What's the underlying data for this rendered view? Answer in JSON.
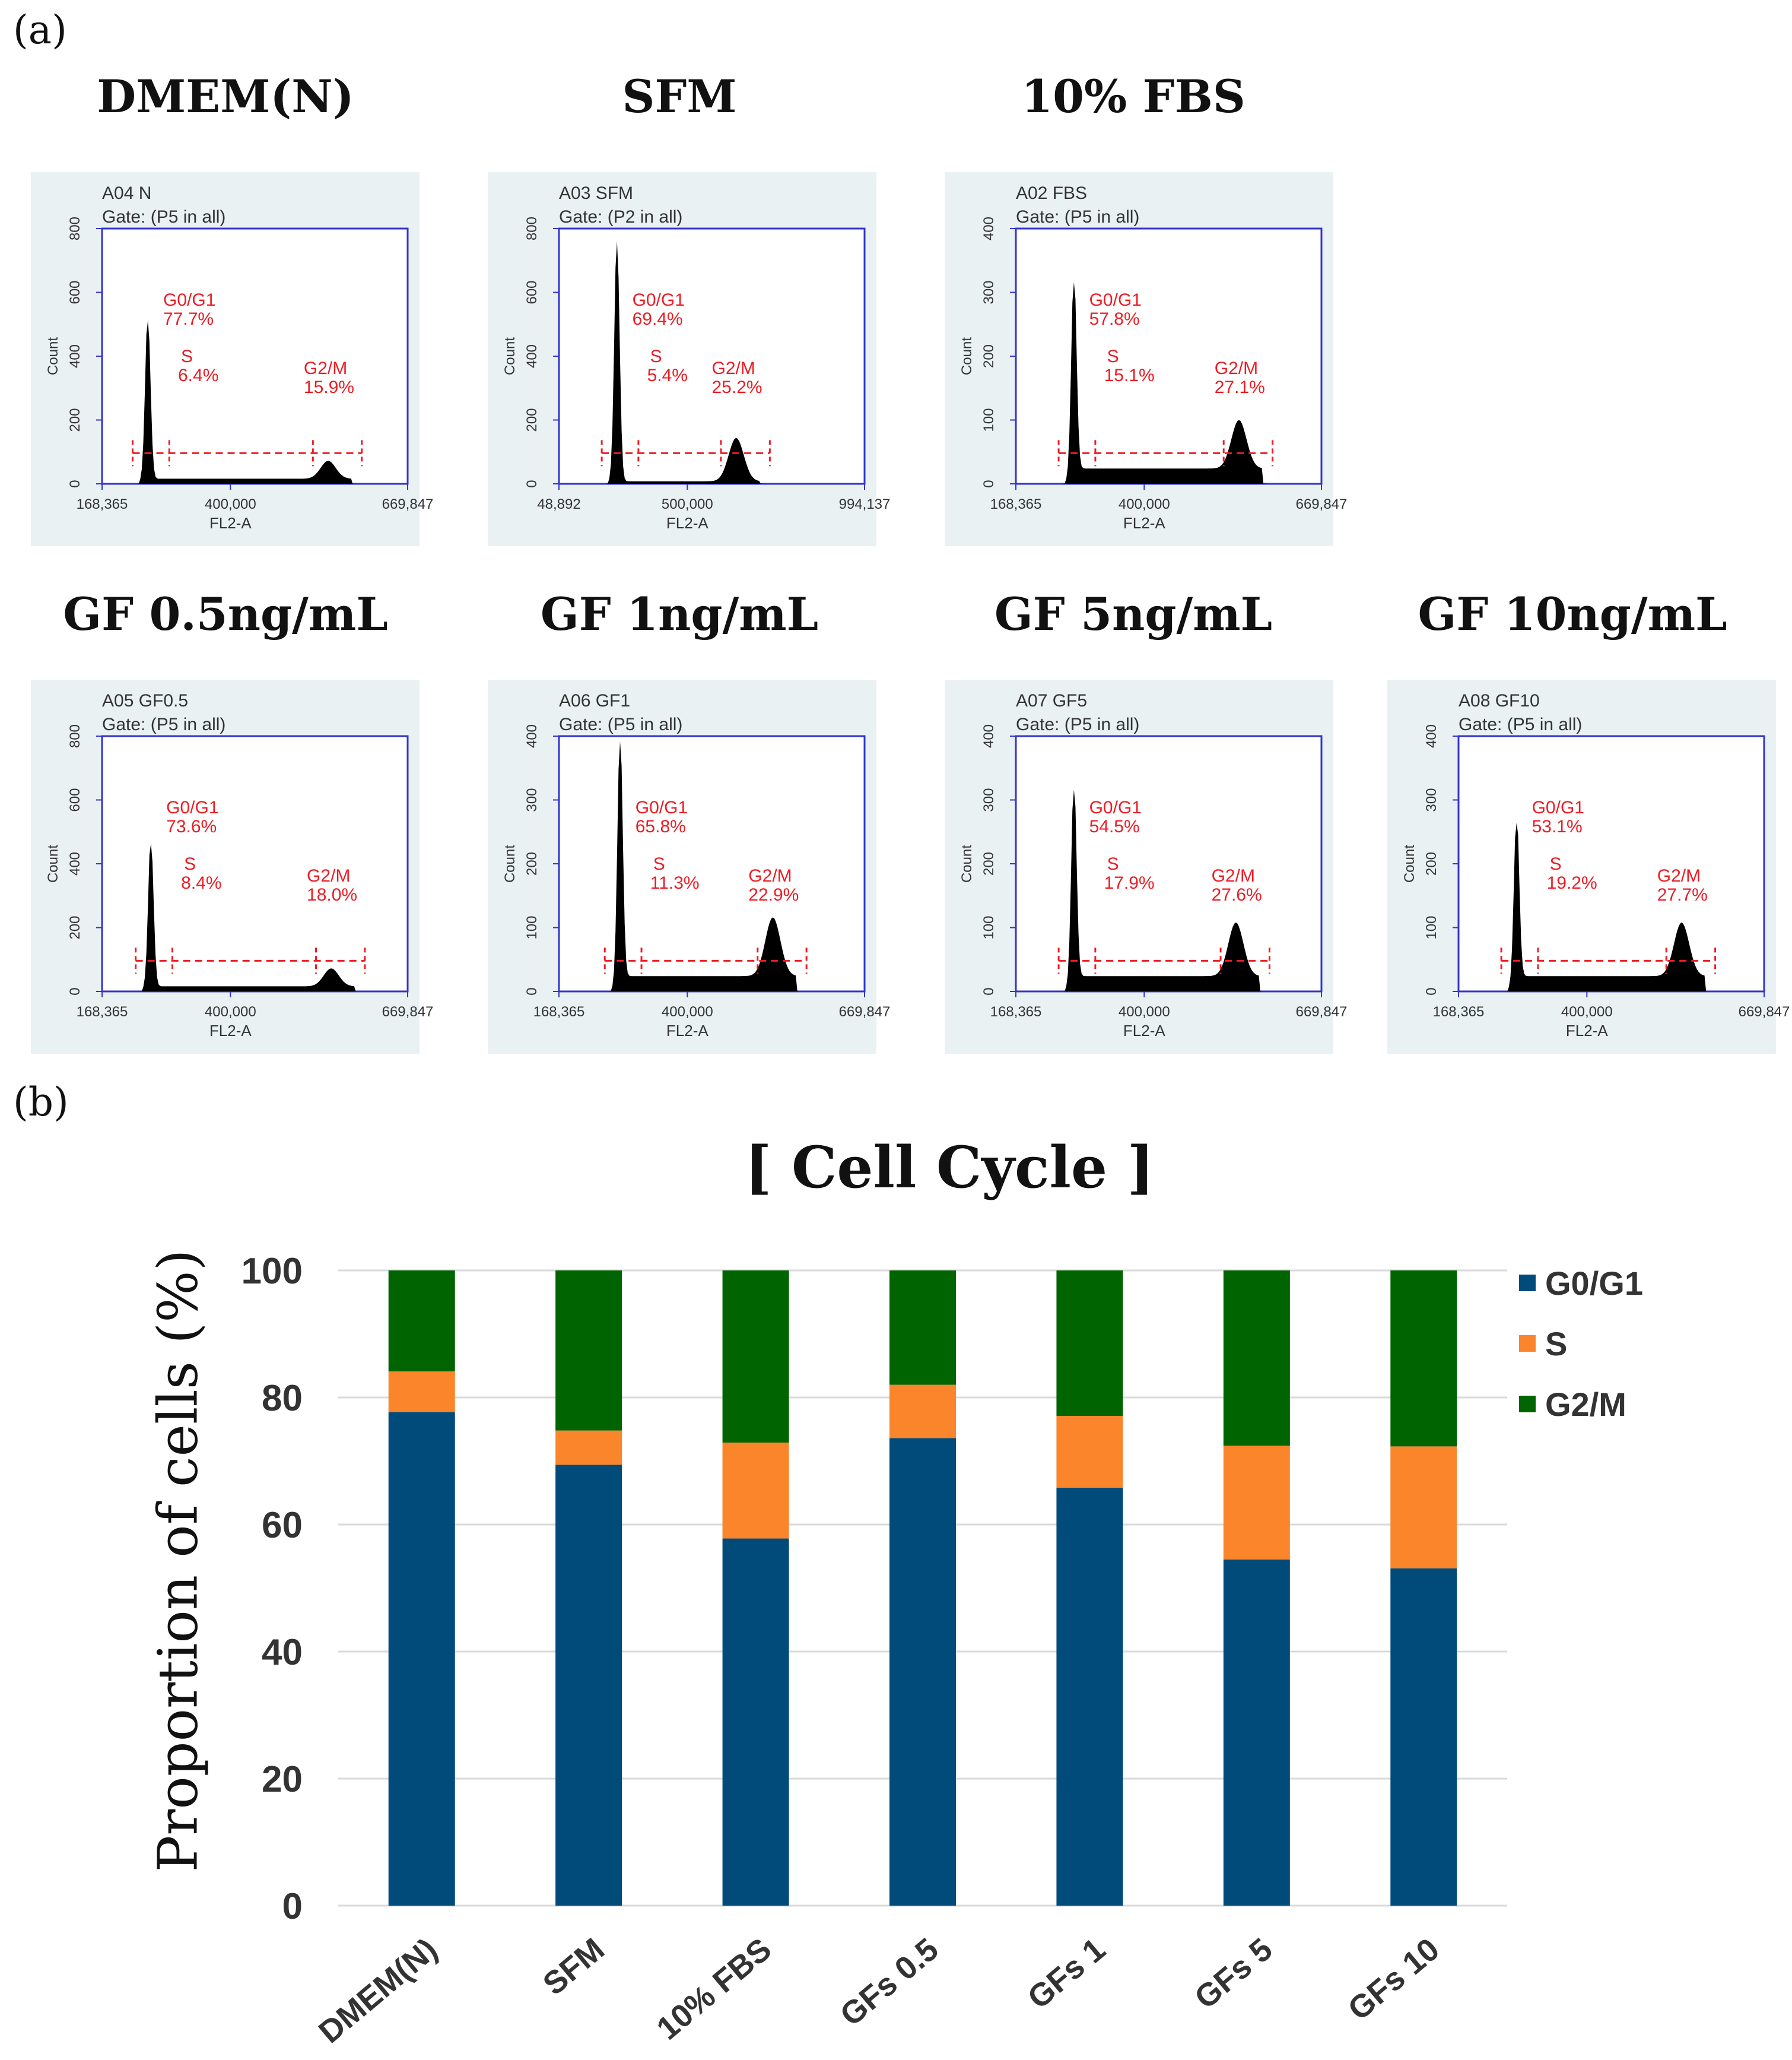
{
  "panel_labels": {
    "a": "(a)",
    "b": "(b)"
  },
  "histograms": [
    {
      "title": "DMEM(N)",
      "sample": "A04 N",
      "gate": "Gate: (P5 in all)",
      "y_ticks": [
        "0",
        "200",
        "400",
        "600",
        "800"
      ],
      "x_ticks": [
        "168,365",
        "400,000",
        "669,847"
      ],
      "x_label": "FL2-A",
      "y_label": "Count",
      "labels": {
        "g0g1": "G0/G1",
        "g0g1_val": "77.7%",
        "s": "S",
        "s_val": "6.4%",
        "g2m": "G2/M",
        "g2m_val": "15.9%"
      }
    },
    {
      "title": "SFM",
      "sample": "A03 SFM",
      "gate": "Gate: (P2 in all)",
      "y_ticks": [
        "0",
        "200",
        "400",
        "600",
        "800"
      ],
      "x_ticks": [
        "48,892",
        "500,000",
        "994,137"
      ],
      "x_label": "FL2-A",
      "y_label": "Count",
      "labels": {
        "g0g1": "G0/G1",
        "g0g1_val": "69.4%",
        "s": "S",
        "s_val": "5.4%",
        "g2m": "G2/M",
        "g2m_val": "25.2%"
      }
    },
    {
      "title": "10% FBS",
      "sample": "A02 FBS",
      "gate": "Gate: (P5 in all)",
      "y_ticks": [
        "0",
        "100",
        "200",
        "300",
        "400"
      ],
      "x_ticks": [
        "168,365",
        "400,000",
        "669,847"
      ],
      "x_label": "FL2-A",
      "y_label": "Count",
      "labels": {
        "g0g1": "G0/G1",
        "g0g1_val": "57.8%",
        "s": "S",
        "s_val": "15.1%",
        "g2m": "G2/M",
        "g2m_val": "27.1%"
      }
    },
    {
      "title": "GF 0.5ng/mL",
      "sample": "A05 GF0.5",
      "gate": "Gate: (P5 in all)",
      "y_ticks": [
        "0",
        "200",
        "400",
        "600",
        "800"
      ],
      "x_ticks": [
        "168,365",
        "400,000",
        "669,847"
      ],
      "x_label": "FL2-A",
      "y_label": "Count",
      "labels": {
        "g0g1": "G0/G1",
        "g0g1_val": "73.6%",
        "s": "S",
        "s_val": "8.4%",
        "g2m": "G2/M",
        "g2m_val": "18.0%"
      }
    },
    {
      "title": "GF 1ng/mL",
      "sample": "A06 GF1",
      "gate": "Gate: (P5 in all)",
      "y_ticks": [
        "0",
        "100",
        "200",
        "300",
        "400"
      ],
      "x_ticks": [
        "168,365",
        "400,000",
        "669,847"
      ],
      "x_label": "FL2-A",
      "y_label": "Count",
      "labels": {
        "g0g1": "G0/G1",
        "g0g1_val": "65.8%",
        "s": "S",
        "s_val": "11.3%",
        "g2m": "G2/M",
        "g2m_val": "22.9%"
      }
    },
    {
      "title": "GF 5ng/mL",
      "sample": "A07 GF5",
      "gate": "Gate: (P5 in all)",
      "y_ticks": [
        "0",
        "100",
        "200",
        "300",
        "400"
      ],
      "x_ticks": [
        "168,365",
        "400,000",
        "669,847"
      ],
      "x_label": "FL2-A",
      "y_label": "Count",
      "labels": {
        "g0g1": "G0/G1",
        "g0g1_val": "54.5%",
        "s": "S",
        "s_val": "17.9%",
        "g2m": "G2/M",
        "g2m_val": "27.6%"
      }
    },
    {
      "title": "GF 10ng/mL",
      "sample": "A08 GF10",
      "gate": "Gate: (P5 in all)",
      "y_ticks": [
        "0",
        "100",
        "200",
        "300",
        "400"
      ],
      "x_ticks": [
        "168,365",
        "400,000",
        "669,847"
      ],
      "x_label": "FL2-A",
      "y_label": "Count",
      "labels": {
        "g0g1": "G0/G1",
        "g0g1_val": "53.1%",
        "s": "S",
        "s_val": "19.2%",
        "g2m": "G2/M",
        "g2m_val": "27.7%"
      }
    }
  ],
  "colors": {
    "g0g1": "#004b7a",
    "s": "#fa852a",
    "g2m": "#006400",
    "hist_axis": "#3333cc",
    "hist_label": "#ee1c24",
    "hist_bg": "#e9f1f3",
    "grid": "#d9d9d9"
  },
  "chart_data": {
    "type": "bar",
    "stacked": true,
    "title": "[ Cell Cycle ]",
    "ylabel": "Proportion of cells (%)",
    "xlabel": "",
    "ylim": [
      0,
      100
    ],
    "y_ticks": [
      "0",
      "20",
      "40",
      "60",
      "80",
      "100"
    ],
    "grid": true,
    "legend_position": "right",
    "categories": [
      "DMEM(N)",
      "SFM",
      "10% FBS",
      "GFs 0.5",
      "GFs 1",
      "GFs 5",
      "GFs 10"
    ],
    "series": [
      {
        "name": "G0/G1",
        "values": [
          77.7,
          69.4,
          57.8,
          73.6,
          65.8,
          54.5,
          53.1
        ]
      },
      {
        "name": "S",
        "values": [
          6.4,
          5.4,
          15.1,
          8.4,
          11.3,
          17.9,
          19.2
        ]
      },
      {
        "name": "G2/M",
        "values": [
          15.9,
          25.2,
          27.1,
          18.0,
          22.9,
          27.6,
          27.7
        ]
      }
    ]
  }
}
